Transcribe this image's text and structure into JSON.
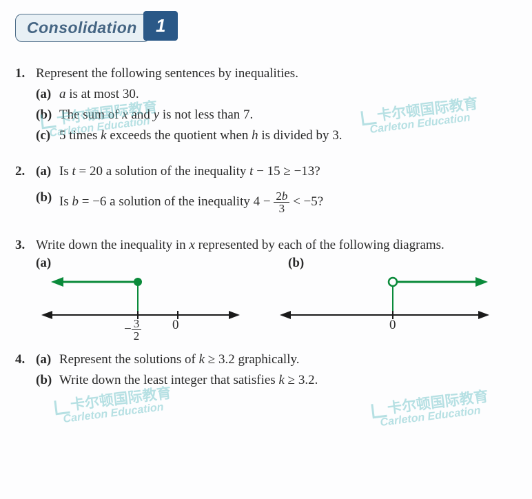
{
  "header": {
    "title": "Consolidation",
    "number": "1"
  },
  "watermark": {
    "cn": "卡尔顿国际教育",
    "en": "Carleton Education"
  },
  "questions": [
    {
      "num": "1.",
      "stem": "Represent the following sentences by inequalities.",
      "parts": [
        {
          "label": "(a)",
          "html": "<span class='ital'>a</span> is at most 30."
        },
        {
          "label": "(b)",
          "html": "The sum of <span class='ital'>x</span> and <span class='ital'>y</span> is not less than 7."
        },
        {
          "label": "(c)",
          "html": "5 times <span class='ital'>k</span> exceeds the quotient when <span class='ital'>h</span> is divided by 3."
        }
      ]
    },
    {
      "num": "2.",
      "parts": [
        {
          "label": "(a)",
          "html": "Is <span class='ital'>t</span> = 20 a solution of the inequality <span class='ital'>t</span> − 15 ≥ −13?"
        },
        {
          "label": "(b)",
          "html": "Is <span class='ital'>b</span> = −6 a solution of the inequality 4 − <span class='frac'><span class='n'>2<span class=\"ital\">b</span></span><span class='d'>3</span></span> &lt; −5?"
        }
      ]
    },
    {
      "num": "3.",
      "stem": "Write down the inequality in <span class='ital'>x</span> represented by each of the following diagrams.",
      "label_a": "(a)",
      "label_b": "(b)"
    },
    {
      "num": "4.",
      "parts": [
        {
          "label": "(a)",
          "html": "Represent the solutions of <span class='ital'>k</span> ≥ 3.2 graphically."
        },
        {
          "label": "(b)",
          "html": "Write down the least integer that satisfies <span class='ital'>k</span> ≥ 3.2."
        }
      ]
    }
  ],
  "diagrams": {
    "a": {
      "axis_color": "#1a1a1a",
      "ray_color": "#0a8a3a",
      "tick_zero_x": 200,
      "tick_dot_x": 140,
      "tick_zero_label": "0",
      "tick_dot_label_html": "−<span class='frac'><span class='n'>3</span><span class='d'>2</span></span>",
      "closed_circle": true
    },
    "b": {
      "axis_color": "#1a1a1a",
      "ray_color": "#0a8a3a",
      "tick_zero_x": 170,
      "tick_zero_label": "0",
      "closed_circle": false
    }
  }
}
